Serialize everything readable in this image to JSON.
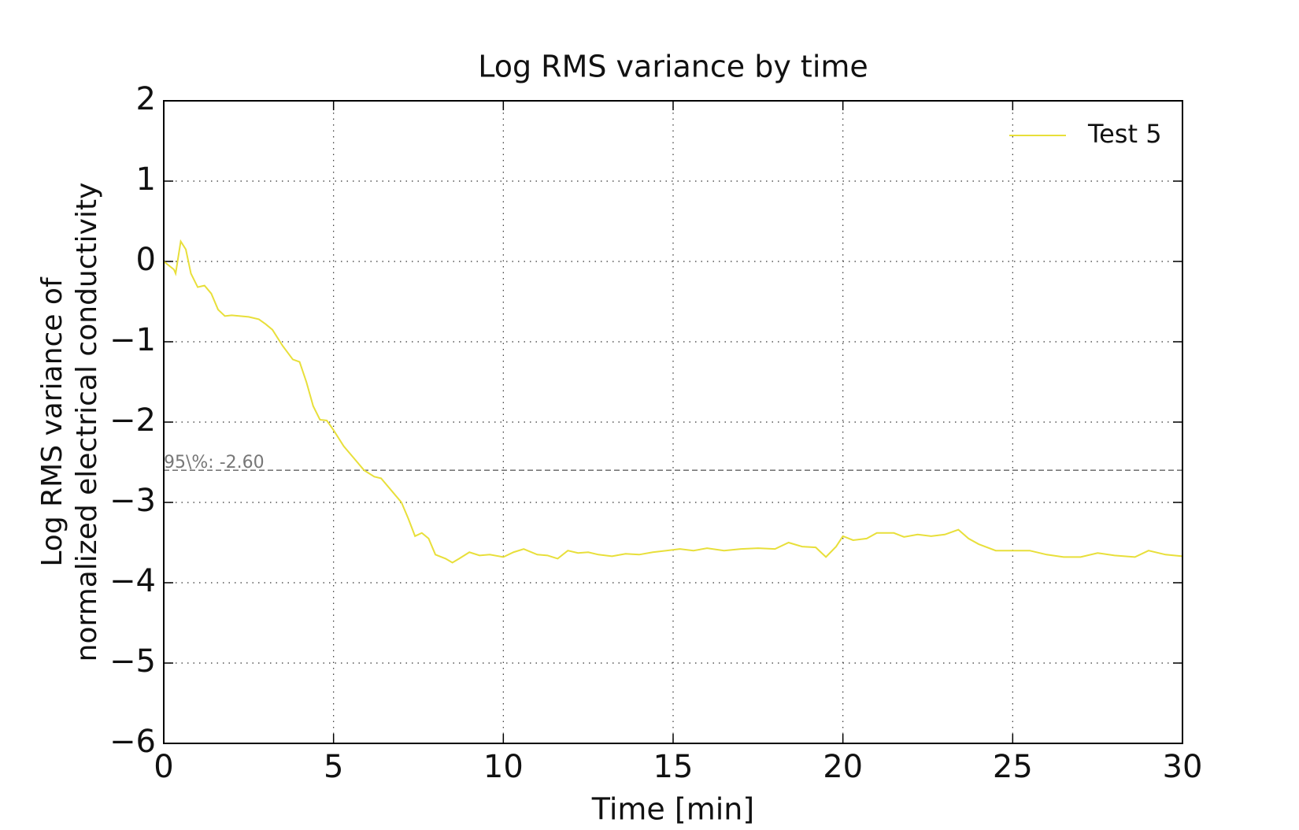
{
  "chart_data": {
    "type": "line",
    "title": "Log RMS variance by time",
    "xlabel": "Time [min]",
    "ylabel": [
      "Log RMS variance of",
      "normalized electrical conductivity"
    ],
    "xlim": [
      0,
      30
    ],
    "ylim": [
      -6,
      2
    ],
    "xticks": [
      0,
      5,
      10,
      15,
      20,
      25,
      30
    ],
    "yticks": [
      {
        "value": -6,
        "label": "−6"
      },
      {
        "value": -5,
        "label": "−5"
      },
      {
        "value": -4,
        "label": "−4"
      },
      {
        "value": -3,
        "label": "−3"
      },
      {
        "value": -2,
        "label": "−2"
      },
      {
        "value": -1,
        "label": "−1"
      },
      0,
      1,
      2
    ],
    "grid": true,
    "legend": "upper right",
    "reference_line": {
      "value": -2.6,
      "label": "95\\%: -2.60",
      "color": "#777777"
    },
    "x": [
      0,
      0.3,
      0.35,
      0.5,
      0.65,
      0.8,
      1.0,
      1.2,
      1.4,
      1.6,
      1.8,
      2.0,
      2.5,
      2.8,
      3.0,
      3.2,
      3.5,
      3.8,
      4.0,
      4.2,
      4.4,
      4.6,
      4.8,
      5.0,
      5.3,
      5.6,
      5.9,
      6.2,
      6.4,
      6.7,
      7.0,
      7.2,
      7.4,
      7.6,
      7.8,
      8.0,
      8.3,
      8.5,
      8.7,
      9.0,
      9.3,
      9.6,
      10.0,
      10.3,
      10.6,
      11.0,
      11.3,
      11.6,
      11.9,
      12.2,
      12.5,
      12.8,
      13.2,
      13.6,
      14.0,
      14.4,
      14.8,
      15.2,
      15.6,
      16.0,
      16.5,
      17.0,
      17.5,
      18.0,
      18.4,
      18.8,
      19.2,
      19.5,
      19.8,
      20.0,
      20.3,
      20.7,
      21.0,
      21.5,
      21.8,
      22.2,
      22.6,
      23.0,
      23.4,
      23.7,
      24.0,
      24.5,
      25.0,
      25.5,
      26.0,
      26.5,
      27.0,
      27.5,
      28.0,
      28.6,
      29.0,
      29.5,
      30.0
    ],
    "series": [
      {
        "name": "Test 5",
        "color": "#e8df3a",
        "values": [
          0,
          -0.1,
          -0.15,
          0.25,
          0.15,
          -0.15,
          -0.32,
          -0.3,
          -0.4,
          -0.6,
          -0.68,
          -0.67,
          -0.69,
          -0.72,
          -0.78,
          -0.85,
          -1.05,
          -1.22,
          -1.25,
          -1.5,
          -1.8,
          -1.97,
          -1.98,
          -2.1,
          -2.3,
          -2.45,
          -2.6,
          -2.68,
          -2.7,
          -2.85,
          -3.0,
          -3.2,
          -3.42,
          -3.38,
          -3.45,
          -3.65,
          -3.7,
          -3.75,
          -3.7,
          -3.62,
          -3.66,
          -3.65,
          -3.68,
          -3.62,
          -3.58,
          -3.65,
          -3.66,
          -3.7,
          -3.6,
          -3.63,
          -3.62,
          -3.65,
          -3.67,
          -3.64,
          -3.65,
          -3.62,
          -3.6,
          -3.58,
          -3.6,
          -3.57,
          -3.6,
          -3.58,
          -3.57,
          -3.58,
          -3.5,
          -3.55,
          -3.56,
          -3.68,
          -3.55,
          -3.42,
          -3.47,
          -3.45,
          -3.38,
          -3.38,
          -3.43,
          -3.4,
          -3.42,
          -3.4,
          -3.34,
          -3.45,
          -3.52,
          -3.6,
          -3.6,
          -3.6,
          -3.65,
          -3.68,
          -3.68,
          -3.63,
          -3.66,
          -3.68,
          -3.6,
          -3.65,
          -3.67
        ]
      }
    ]
  }
}
